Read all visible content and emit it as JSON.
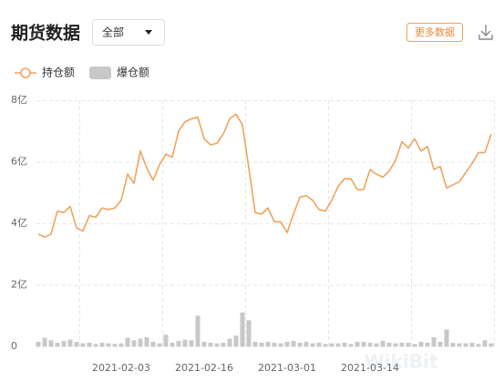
{
  "header": {
    "title": "期货数据",
    "dropdown": "全部",
    "button": "更多数据"
  },
  "chart_data": {
    "type": "line",
    "categories": [
      null,
      null,
      null,
      null,
      null,
      null,
      null,
      null,
      null,
      null,
      null,
      null,
      null,
      "2021-02-03",
      null,
      null,
      null,
      null,
      null,
      null,
      null,
      null,
      null,
      null,
      null,
      null,
      "2021-02-16",
      null,
      null,
      null,
      null,
      null,
      null,
      null,
      null,
      null,
      null,
      null,
      null,
      "2021-03-01",
      null,
      null,
      null,
      null,
      null,
      null,
      null,
      null,
      null,
      null,
      null,
      null,
      "2021-03-14",
      null,
      null,
      null,
      null,
      null,
      null,
      null,
      null,
      null,
      null,
      null,
      null,
      null,
      null,
      null,
      null,
      null,
      null,
      null
    ],
    "series": [
      {
        "name": "持仓额",
        "type": "line",
        "color": "#f0a35e",
        "values": [
          3.65,
          3.55,
          3.65,
          4.4,
          4.35,
          4.55,
          3.85,
          3.75,
          4.25,
          4.2,
          4.5,
          4.45,
          4.5,
          4.75,
          5.6,
          5.3,
          6.35,
          5.8,
          5.4,
          5.9,
          6.25,
          6.15,
          7.0,
          7.3,
          7.4,
          7.45,
          6.75,
          6.55,
          6.6,
          6.9,
          7.4,
          7.55,
          7.2,
          5.8,
          4.35,
          4.3,
          4.5,
          4.05,
          4.05,
          3.7,
          4.3,
          4.85,
          4.9,
          4.75,
          4.45,
          4.4,
          4.75,
          5.2,
          5.45,
          5.45,
          5.1,
          5.1,
          5.75,
          5.6,
          5.5,
          5.7,
          6.05,
          6.65,
          6.45,
          6.75,
          6.35,
          6.5,
          5.75,
          5.85,
          5.15,
          5.25,
          5.35,
          5.65,
          5.95,
          6.3,
          6.3,
          6.9
        ]
      },
      {
        "name": "爆仓额",
        "type": "bar",
        "color": "#c8c8c8",
        "values": [
          0.15,
          0.28,
          0.2,
          0.12,
          0.18,
          0.22,
          0.15,
          0.1,
          0.12,
          0.08,
          0.12,
          0.1,
          0.08,
          0.1,
          0.28,
          0.2,
          0.25,
          0.3,
          0.15,
          0.1,
          0.38,
          0.12,
          0.18,
          0.22,
          0.2,
          1.0,
          0.15,
          0.12,
          0.1,
          0.12,
          0.25,
          0.35,
          1.1,
          0.85,
          0.15,
          0.12,
          0.15,
          0.12,
          0.1,
          0.15,
          0.18,
          0.12,
          0.15,
          0.1,
          0.12,
          0.08,
          0.1,
          0.1,
          0.12,
          0.08,
          0.15,
          0.15,
          0.12,
          0.1,
          0.18,
          0.12,
          0.1,
          0.12,
          0.12,
          0.08,
          0.15,
          0.12,
          0.3,
          0.15,
          0.55,
          0.12,
          0.1,
          0.1,
          0.12,
          0.08,
          0.2,
          0.1
        ]
      }
    ],
    "ylim": [
      0,
      8
    ],
    "yticks": [
      0,
      {
        "value": 2,
        "label": "2亿"
      },
      {
        "value": 4,
        "label": "4亿"
      },
      {
        "value": 6,
        "label": "6亿"
      },
      {
        "value": 8,
        "label": "8亿"
      }
    ],
    "grid": true,
    "watermark": "WikiBit"
  }
}
